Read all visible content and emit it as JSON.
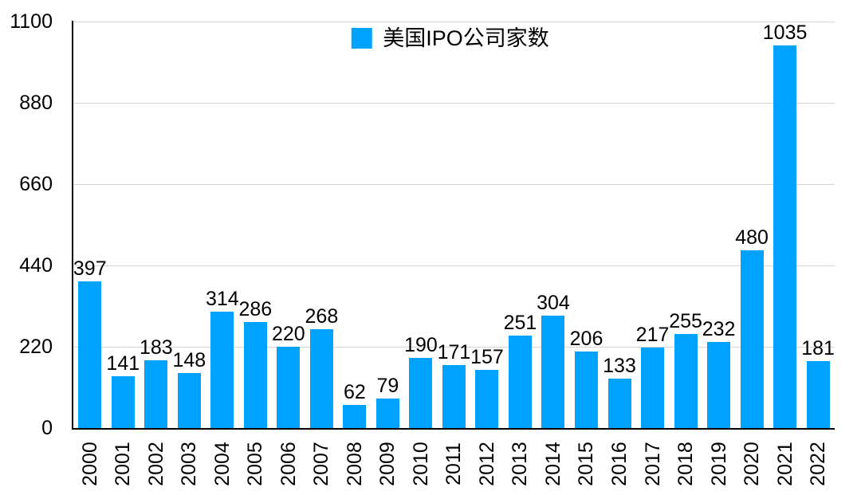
{
  "legend": {
    "label": "美国IPO公司家数"
  },
  "colors": {
    "bar": "#00a2ff",
    "grid": "#d5d5d5",
    "axis": "#000000",
    "text": "#000000",
    "background": "#ffffff"
  },
  "chart_data": {
    "type": "bar",
    "title": "",
    "xlabel": "",
    "ylabel": "",
    "categories": [
      "2000",
      "2001",
      "2002",
      "2003",
      "2004",
      "2005",
      "2006",
      "2007",
      "2008",
      "2009",
      "2010",
      "2011",
      "2012",
      "2013",
      "2014",
      "2015",
      "2016",
      "2017",
      "2018",
      "2019",
      "2020",
      "2021",
      "2022"
    ],
    "values": [
      397,
      141,
      183,
      148,
      314,
      286,
      220,
      268,
      62,
      79,
      190,
      171,
      157,
      251,
      304,
      206,
      133,
      217,
      255,
      232,
      480,
      1035,
      181
    ],
    "value_labels": [
      "397",
      "141",
      "183",
      "148",
      "314",
      "286",
      "220",
      "268",
      "62",
      "79",
      "190",
      "171",
      "157",
      "251",
      "304",
      "206",
      "133",
      "217",
      "255",
      "232",
      "480",
      "1035",
      "181"
    ],
    "ylim": [
      0,
      1100
    ],
    "yticks": [
      0,
      220,
      440,
      660,
      880,
      1100
    ],
    "grid": true,
    "legend_position": "top-center",
    "legend_entries": [
      "美国IPO公司家数"
    ],
    "bar_color": "#00a2ff",
    "x_tick_rotation_deg": -90,
    "data_labels_shown": true
  }
}
